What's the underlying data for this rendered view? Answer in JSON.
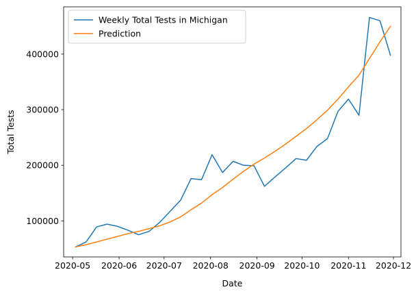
{
  "chart_data": {
    "type": "line",
    "title": "",
    "xlabel": "Date",
    "ylabel": "Total Tests",
    "xlim": [
      "2020-04-25",
      "2020-12-06"
    ],
    "ylim": [
      35000,
      485000
    ],
    "x_ticks": [
      "2020-05",
      "2020-06",
      "2020-07",
      "2020-08",
      "2020-09",
      "2020-10",
      "2020-11",
      "2020-12"
    ],
    "y_ticks": [
      100000,
      200000,
      300000,
      400000
    ],
    "grid": false,
    "legend": "top-left",
    "x": [
      "2020-05-03",
      "2020-05-10",
      "2020-05-17",
      "2020-05-24",
      "2020-05-31",
      "2020-06-07",
      "2020-06-14",
      "2020-06-21",
      "2020-06-28",
      "2020-07-05",
      "2020-07-12",
      "2020-07-19",
      "2020-07-26",
      "2020-08-02",
      "2020-08-09",
      "2020-08-16",
      "2020-08-23",
      "2020-08-30",
      "2020-09-06",
      "2020-09-13",
      "2020-09-20",
      "2020-09-27",
      "2020-10-04",
      "2020-10-11",
      "2020-10-18",
      "2020-10-25",
      "2020-11-01",
      "2020-11-08",
      "2020-11-15",
      "2020-11-22",
      "2020-11-29"
    ],
    "series": [
      {
        "name": "Weekly Total Tests in Michigan",
        "color": "#1f77b4",
        "values": [
          53000,
          62000,
          89000,
          94000,
          90000,
          83000,
          75000,
          81000,
          97000,
          117000,
          137000,
          176000,
          174000,
          219000,
          187000,
          207000,
          200000,
          199000,
          162000,
          179000,
          195000,
          212000,
          209000,
          234000,
          248000,
          297000,
          319000,
          290000,
          466000,
          460000,
          398000
        ]
      },
      {
        "name": "Prediction",
        "color": "#ff7f0e",
        "values": [
          53000,
          57000,
          62000,
          67000,
          72000,
          77000,
          81000,
          86000,
          91000,
          98000,
          107000,
          120000,
          132000,
          147000,
          160000,
          175000,
          189000,
          202000,
          213000,
          225000,
          238000,
          252000,
          266000,
          282000,
          299000,
          319000,
          341000,
          362000,
          392000,
          422000,
          450000
        ]
      }
    ]
  }
}
